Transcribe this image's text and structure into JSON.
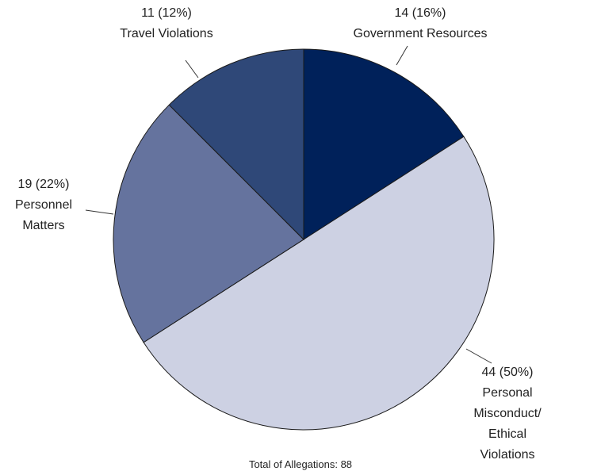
{
  "chart_data": {
    "type": "pie",
    "categories": [
      "Government Resources",
      "Personal Misconduct/\nEthical Violations",
      "Personnel\nMatters",
      "Travel Violations"
    ],
    "values": [
      14,
      44,
      19,
      11
    ],
    "value_labels": [
      "14 (16%)",
      "44 (50%)",
      "19 (22%)",
      "11 (12%)"
    ],
    "colors": [
      "#00215a",
      "#cdd1e3",
      "#65739e",
      "#2f4878"
    ],
    "note": "Total of Allegations: 88"
  }
}
